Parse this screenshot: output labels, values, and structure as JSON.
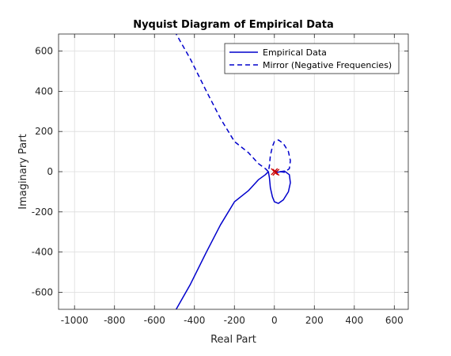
{
  "chart_data": {
    "type": "line",
    "title": "Nyquist Diagram of Empirical Data",
    "xlabel": "Real Part",
    "ylabel": "Imaginary Part",
    "xlim": [
      -1080,
      670
    ],
    "ylim": [
      -685,
      685
    ],
    "xticks": [
      -1000,
      -800,
      -600,
      -400,
      -200,
      0,
      200,
      400,
      600
    ],
    "yticks": [
      -600,
      -400,
      -200,
      0,
      200,
      400,
      600
    ],
    "grid": true,
    "legend_position": "top-right",
    "series": [
      {
        "name": "Empirical Data",
        "color": "#0000cc",
        "dash": "solid",
        "points": [
          [
            -500,
            -700
          ],
          [
            -420,
            -560
          ],
          [
            -340,
            -400
          ],
          [
            -270,
            -265
          ],
          [
            -200,
            -150
          ],
          [
            -130,
            -95
          ],
          [
            -80,
            -40
          ],
          [
            -45,
            -15
          ],
          [
            -30,
            0
          ],
          [
            -25,
            -30
          ],
          [
            -20,
            -80
          ],
          [
            -10,
            -125
          ],
          [
            0,
            -150
          ],
          [
            20,
            -158
          ],
          [
            45,
            -140
          ],
          [
            70,
            -100
          ],
          [
            80,
            -55
          ],
          [
            75,
            -15
          ],
          [
            50,
            3
          ],
          [
            30,
            0
          ],
          [
            15,
            -3
          ],
          [
            0,
            0
          ]
        ]
      },
      {
        "name": "Mirror (Negative Frequencies)",
        "color": "#0000cc",
        "dash": "dashed",
        "points": [
          [
            -500,
            700
          ],
          [
            -420,
            560
          ],
          [
            -340,
            400
          ],
          [
            -270,
            265
          ],
          [
            -200,
            150
          ],
          [
            -130,
            95
          ],
          [
            -80,
            40
          ],
          [
            -45,
            15
          ],
          [
            -30,
            0
          ],
          [
            -25,
            30
          ],
          [
            -20,
            80
          ],
          [
            -10,
            125
          ],
          [
            0,
            150
          ],
          [
            20,
            158
          ],
          [
            45,
            140
          ],
          [
            70,
            100
          ],
          [
            80,
            55
          ],
          [
            75,
            15
          ],
          [
            50,
            -3
          ],
          [
            30,
            0
          ],
          [
            15,
            3
          ],
          [
            0,
            0
          ]
        ]
      }
    ],
    "markers": [
      {
        "x": 0,
        "y": 0,
        "symbol": "x",
        "color": "#cc0000"
      },
      {
        "x": 8,
        "y": -3,
        "symbol": "x",
        "color": "#cc0000"
      }
    ]
  }
}
